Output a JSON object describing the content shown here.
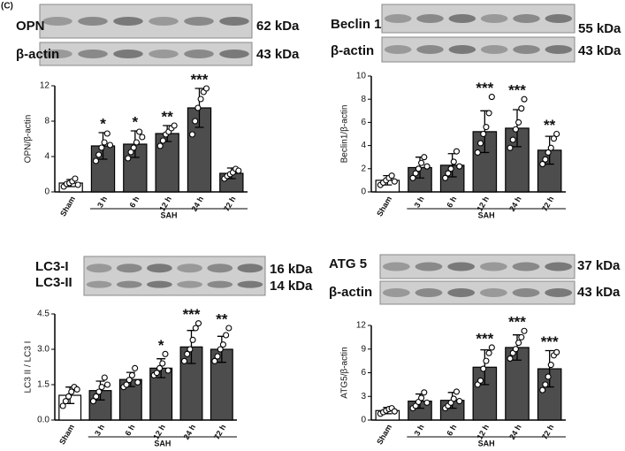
{
  "figure_label": "(C)",
  "chart_data": [
    {
      "type": "bar",
      "blots": [
        {
          "label": "OPN",
          "size": "62 kDa"
        },
        {
          "label": "β-actin",
          "size": "43 kDa"
        }
      ],
      "ylabel": "OPN/β-actin",
      "group_label": "SAH",
      "categories": [
        "Sham",
        "3 h",
        "6 h",
        "12 h",
        "24 h",
        "72 h"
      ],
      "values": [
        1.0,
        5.2,
        5.4,
        6.6,
        9.5,
        2.1
      ],
      "errors": [
        0.4,
        1.5,
        1.5,
        0.9,
        2.2,
        0.6
      ],
      "points": [
        [
          0.6,
          0.9,
          1.0,
          1.2,
          1.5,
          0.8
        ],
        [
          3.5,
          4.2,
          5.0,
          5.6,
          6.6,
          5.3
        ],
        [
          3.8,
          4.5,
          5.0,
          5.6,
          6.8,
          6.2
        ],
        [
          5.2,
          5.8,
          6.5,
          6.8,
          7.2,
          7.5
        ],
        [
          6.5,
          8.0,
          9.5,
          10.5,
          11.3,
          11.7
        ],
        [
          1.5,
          1.8,
          2.0,
          2.2,
          2.6,
          2.4
        ]
      ],
      "significance": [
        null,
        "*",
        "*",
        "**",
        "***",
        null
      ],
      "bar_colors": [
        "#ffffff",
        "#4d4d4d",
        "#4d4d4d",
        "#4d4d4d",
        "#4d4d4d",
        "#4d4d4d"
      ],
      "ylim": [
        0,
        12
      ],
      "yticks": [
        0,
        4,
        8,
        12
      ]
    },
    {
      "type": "bar",
      "blots": [
        {
          "label": "Beclin 1",
          "size": "55 kDa"
        },
        {
          "label": "β-actin",
          "size": "43 kDa"
        }
      ],
      "ylabel": "Beclin1/β-actin",
      "group_label": "SAH",
      "categories": [
        "Sham",
        "3 h",
        "6 h",
        "12 h",
        "24 h",
        "72 h"
      ],
      "values": [
        1.0,
        2.1,
        2.3,
        5.2,
        5.5,
        3.6
      ],
      "errors": [
        0.4,
        0.9,
        1.0,
        1.8,
        1.6,
        1.2
      ],
      "points": [
        [
          0.6,
          0.8,
          1.0,
          1.2,
          1.4,
          0.9
        ],
        [
          1.2,
          1.6,
          2.0,
          2.5,
          3.0,
          2.2
        ],
        [
          1.2,
          1.6,
          2.0,
          2.6,
          3.5,
          2.2
        ],
        [
          3.4,
          4.2,
          5.0,
          5.6,
          6.8,
          8.2
        ],
        [
          3.8,
          4.5,
          5.4,
          6.0,
          7.2,
          8.0
        ],
        [
          2.4,
          2.8,
          3.4,
          3.8,
          4.6,
          5.0
        ]
      ],
      "significance": [
        null,
        null,
        null,
        "***",
        "***",
        "**"
      ],
      "bar_colors": [
        "#ffffff",
        "#4d4d4d",
        "#4d4d4d",
        "#4d4d4d",
        "#4d4d4d",
        "#4d4d4d"
      ],
      "ylim": [
        0,
        10
      ],
      "yticks": [
        0,
        2,
        4,
        6,
        8,
        10
      ]
    },
    {
      "type": "bar",
      "blots": [
        {
          "label": "LC3-I",
          "size": "16 kDa"
        },
        {
          "label": "LC3-II",
          "size": "14 kDa"
        }
      ],
      "ylabel": "LC3 II / LC3 I",
      "group_label": "SAH",
      "categories": [
        "Sham",
        "3 h",
        "6 h",
        "12 h",
        "24 h",
        "72 h"
      ],
      "values": [
        1.05,
        1.25,
        1.72,
        2.2,
        3.1,
        3.0
      ],
      "errors": [
        0.35,
        0.4,
        0.3,
        0.4,
        0.7,
        0.55
      ],
      "points": [
        [
          0.6,
          0.8,
          1.0,
          1.2,
          1.4,
          1.3
        ],
        [
          0.8,
          1.0,
          1.2,
          1.4,
          1.8,
          1.5
        ],
        [
          1.4,
          1.5,
          1.7,
          1.9,
          2.2,
          1.6
        ],
        [
          1.9,
          2.0,
          2.2,
          2.4,
          2.8,
          2.1
        ],
        [
          2.5,
          2.8,
          3.0,
          3.4,
          3.9,
          4.1
        ],
        [
          2.5,
          2.7,
          3.0,
          3.2,
          3.6,
          3.9
        ]
      ],
      "significance": [
        null,
        null,
        null,
        "*",
        "***",
        "**"
      ],
      "bar_colors": [
        "#ffffff",
        "#4d4d4d",
        "#4d4d4d",
        "#4d4d4d",
        "#4d4d4d",
        "#4d4d4d"
      ],
      "ylim": [
        0,
        4.5
      ],
      "yticks": [
        {
          "value": 0,
          "label": "0.0"
        },
        {
          "value": 1.5,
          "label": "1.5"
        },
        {
          "value": 3,
          "label": "3.0"
        },
        {
          "value": 4.5,
          "label": "4.5"
        }
      ]
    },
    {
      "type": "bar",
      "blots": [
        {
          "label": "ATG 5",
          "size": "37 kDa"
        },
        {
          "label": "β-actin",
          "size": "43 kDa"
        }
      ],
      "ylabel": "ATG5/β-actin",
      "group_label": "SAH",
      "categories": [
        "Sham",
        "3 h",
        "6 h",
        "12 h",
        "24 h",
        "72 h"
      ],
      "values": [
        1.2,
        2.4,
        2.5,
        6.7,
        9.2,
        6.5
      ],
      "errors": [
        0.4,
        0.9,
        1.0,
        2.2,
        1.6,
        2.3
      ],
      "points": [
        [
          0.8,
          1.0,
          1.2,
          1.4,
          1.5,
          1.1
        ],
        [
          1.5,
          1.8,
          2.3,
          2.8,
          3.5,
          2.2
        ],
        [
          1.5,
          1.8,
          2.2,
          2.7,
          3.6,
          2.4
        ],
        [
          4.5,
          5.0,
          6.5,
          7.5,
          8.5,
          9.2
        ],
        [
          7.8,
          8.5,
          9.0,
          9.8,
          10.5,
          11.3
        ],
        [
          3.8,
          4.5,
          5.5,
          7.0,
          8.2,
          8.6
        ]
      ],
      "significance": [
        null,
        null,
        null,
        "***",
        "***",
        "***"
      ],
      "bar_colors": [
        "#ffffff",
        "#4d4d4d",
        "#4d4d4d",
        "#4d4d4d",
        "#4d4d4d",
        "#4d4d4d"
      ],
      "ylim": [
        0,
        12
      ],
      "yticks": [
        0,
        3,
        6,
        9,
        12
      ]
    }
  ]
}
